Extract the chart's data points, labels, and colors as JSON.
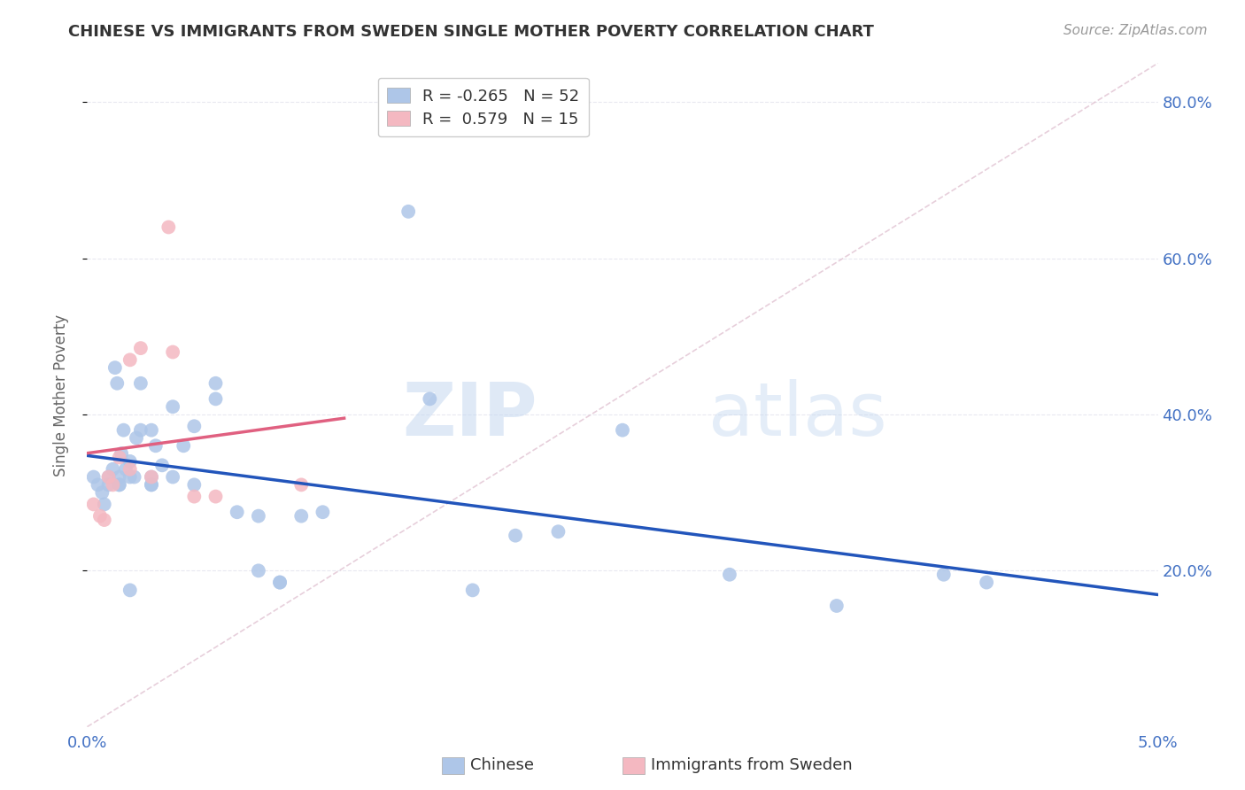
{
  "title": "CHINESE VS IMMIGRANTS FROM SWEDEN SINGLE MOTHER POVERTY CORRELATION CHART",
  "source": "Source: ZipAtlas.com",
  "ylabel": "Single Mother Poverty",
  "xlim": [
    0.0,
    0.05
  ],
  "ylim": [
    0.0,
    0.85
  ],
  "xtick_vals": [
    0.0,
    0.01,
    0.02,
    0.03,
    0.04,
    0.05
  ],
  "xtick_labels": [
    "0.0%",
    "",
    "",
    "",
    "",
    "5.0%"
  ],
  "ytick_vals": [
    0.2,
    0.4,
    0.6,
    0.8
  ],
  "ytick_labels": [
    "20.0%",
    "40.0%",
    "60.0%",
    "80.0%"
  ],
  "chinese_R": -0.265,
  "chinese_N": 52,
  "sweden_R": 0.579,
  "sweden_N": 15,
  "chinese_color": "#aec6e8",
  "sweden_color": "#f4b8c1",
  "chinese_line_color": "#2255bb",
  "sweden_line_color": "#e06080",
  "diagonal_color": "#ddbbcc",
  "watermark_zip": "ZIP",
  "watermark_atlas": "atlas",
  "background_color": "#ffffff",
  "chinese_x": [
    0.0003,
    0.0005,
    0.0007,
    0.0008,
    0.001,
    0.001,
    0.0012,
    0.0013,
    0.0014,
    0.0015,
    0.0015,
    0.0015,
    0.0016,
    0.0017,
    0.0018,
    0.002,
    0.002,
    0.002,
    0.0022,
    0.0023,
    0.0025,
    0.0025,
    0.003,
    0.003,
    0.003,
    0.003,
    0.0032,
    0.0035,
    0.004,
    0.004,
    0.0045,
    0.005,
    0.005,
    0.006,
    0.006,
    0.007,
    0.008,
    0.008,
    0.009,
    0.009,
    0.01,
    0.011,
    0.015,
    0.016,
    0.018,
    0.02,
    0.022,
    0.025,
    0.03,
    0.035,
    0.04,
    0.042
  ],
  "chinese_y": [
    0.32,
    0.31,
    0.3,
    0.285,
    0.31,
    0.32,
    0.33,
    0.46,
    0.44,
    0.31,
    0.32,
    0.31,
    0.35,
    0.38,
    0.33,
    0.34,
    0.32,
    0.175,
    0.32,
    0.37,
    0.38,
    0.44,
    0.32,
    0.31,
    0.31,
    0.38,
    0.36,
    0.335,
    0.32,
    0.41,
    0.36,
    0.385,
    0.31,
    0.44,
    0.42,
    0.275,
    0.27,
    0.2,
    0.185,
    0.185,
    0.27,
    0.275,
    0.66,
    0.42,
    0.175,
    0.245,
    0.25,
    0.38,
    0.195,
    0.155,
    0.195,
    0.185
  ],
  "sweden_x": [
    0.0003,
    0.0006,
    0.0008,
    0.001,
    0.0012,
    0.0015,
    0.002,
    0.002,
    0.0025,
    0.003,
    0.0038,
    0.004,
    0.005,
    0.006,
    0.01
  ],
  "sweden_y": [
    0.285,
    0.27,
    0.265,
    0.32,
    0.31,
    0.345,
    0.33,
    0.47,
    0.485,
    0.32,
    0.64,
    0.48,
    0.295,
    0.295,
    0.31
  ],
  "title_color": "#333333",
  "tick_color": "#4472c4",
  "grid_color": "#e8e8f0",
  "title_fontsize": 13,
  "tick_fontsize": 13,
  "ylabel_fontsize": 12,
  "source_fontsize": 11,
  "legend_fontsize": 13,
  "scatter_size": 130
}
